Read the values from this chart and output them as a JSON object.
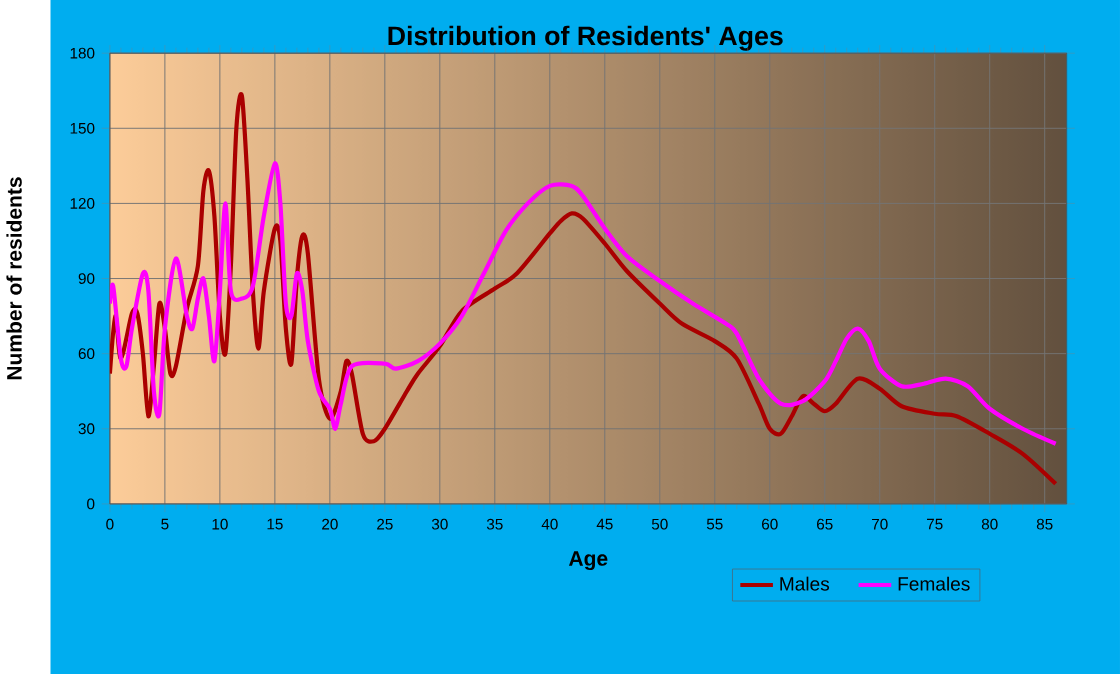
{
  "chart_data": {
    "type": "line",
    "title": "Distribution of Residents' Ages",
    "xlabel": "Age",
    "ylabel": "Number of residents",
    "xlim": [
      0,
      87
    ],
    "xticks": [
      0,
      5,
      10,
      15,
      20,
      25,
      30,
      35,
      40,
      45,
      50,
      55,
      60,
      65,
      70,
      75,
      80,
      85
    ],
    "ylim": [
      0,
      180
    ],
    "yticks": [
      0,
      30,
      60,
      90,
      120,
      150,
      180
    ],
    "grid": true,
    "legend": "bottom right",
    "marker": "none",
    "line_style": "solid",
    "series": [
      {
        "name": "Males",
        "color": "#aa0000",
        "x": [
          0,
          0.5,
          1,
          2,
          2.5,
          3,
          3.5,
          4,
          4.5,
          5,
          5.5,
          6,
          7,
          8,
          8.5,
          9,
          9.5,
          10,
          10.5,
          11,
          11.5,
          12,
          12.5,
          13,
          13.5,
          14,
          15,
          15.5,
          16,
          16.5,
          17,
          17.5,
          18,
          19,
          20,
          21,
          21.5,
          22,
          23,
          24,
          25,
          27,
          28,
          30,
          32,
          35,
          37,
          40,
          41,
          42,
          43,
          45,
          47,
          50,
          52,
          55,
          57,
          59,
          60,
          61,
          62,
          63,
          64,
          65,
          66,
          68,
          70,
          72,
          75,
          77,
          80,
          83,
          86
        ],
        "values": [
          52,
          75,
          58,
          76,
          76,
          60,
          35,
          55,
          80,
          70,
          52,
          55,
          78,
          95,
          125,
          133,
          115,
          75,
          60,
          95,
          150,
          163,
          130,
          85,
          62,
          85,
          110,
          105,
          70,
          56,
          90,
          107,
          100,
          50,
          34,
          45,
          57,
          52,
          28,
          25,
          30,
          45,
          52,
          63,
          77,
          86,
          92,
          108,
          113,
          116,
          114,
          104,
          93,
          80,
          72,
          65,
          58,
          40,
          30,
          28,
          35,
          43,
          40,
          37,
          40,
          50,
          46,
          39,
          36,
          35,
          28,
          20,
          8
        ]
      },
      {
        "name": "Females",
        "color": "#ff00ff",
        "x": [
          0,
          0.3,
          1,
          1.5,
          2,
          3,
          3.5,
          4,
          4.5,
          5,
          6,
          7,
          7.5,
          8,
          8.5,
          9,
          9.5,
          10,
          10.5,
          11,
          12,
          13,
          14,
          15,
          15.5,
          16,
          16.5,
          17,
          17.5,
          18,
          19,
          20,
          20.5,
          21,
          22,
          25,
          26,
          28,
          30,
          32,
          34,
          36,
          38,
          40,
          42,
          43,
          45,
          47,
          50,
          53,
          56,
          57,
          59,
          61,
          63,
          65,
          66,
          67,
          68,
          69,
          70,
          72,
          74,
          76,
          78,
          80,
          83,
          86
        ],
        "values": [
          80,
          87,
          58,
          55,
          70,
          92,
          85,
          45,
          36,
          70,
          98,
          75,
          70,
          82,
          90,
          75,
          57,
          85,
          120,
          85,
          82,
          87,
          115,
          136,
          120,
          80,
          75,
          92,
          85,
          65,
          45,
          38,
          30,
          40,
          55,
          56,
          54,
          57,
          64,
          75,
          92,
          109,
          120,
          127,
          127,
          123,
          110,
          99,
          89,
          80,
          72,
          68,
          50,
          40,
          41,
          49,
          57,
          66,
          70,
          65,
          54,
          47,
          48,
          50,
          47,
          38,
          30,
          24
        ]
      }
    ]
  }
}
